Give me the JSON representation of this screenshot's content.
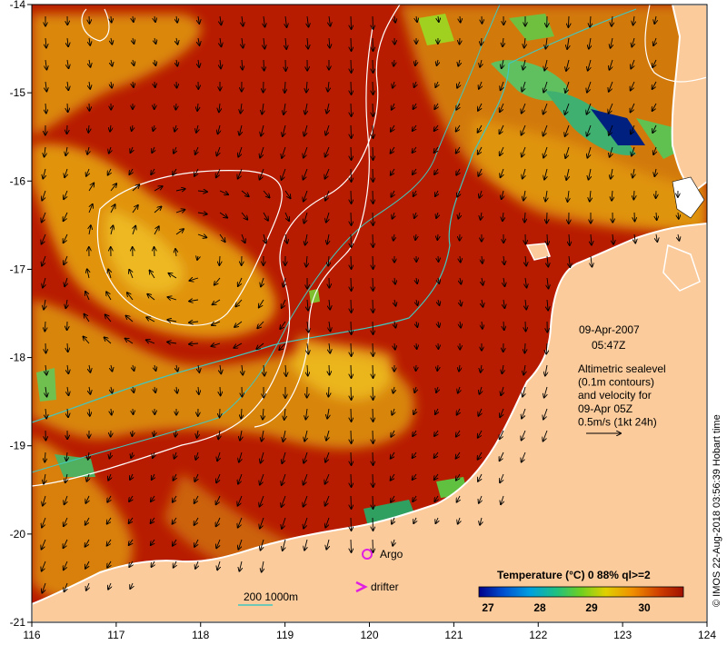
{
  "map": {
    "lon_ticks": [
      "116",
      "117",
      "118",
      "119",
      "120",
      "121",
      "122",
      "123",
      "124"
    ],
    "lat_ticks": [
      "-14",
      "-15",
      "-16",
      "-17",
      "-18",
      "-19",
      "-20",
      "-21"
    ],
    "lon_range": [
      116,
      124
    ],
    "lat_range": [
      -21,
      -14
    ]
  },
  "annotations": {
    "date": "09-Apr-2007",
    "time": "05:47Z",
    "info_lines": [
      "Altimetric sealevel",
      "(0.1m contours)",
      "and velocity for",
      "09-Apr 05Z",
      "0.5m/s (1kt 24h)"
    ]
  },
  "legend": {
    "argo_label": "Argo",
    "drifter_label": "drifter",
    "isobath_label": "200  1000m",
    "colorbar_title": "Temperature (°C) 0 88% ql>=2",
    "colorbar_ticks": [
      "27",
      "28",
      "29",
      "30"
    ]
  },
  "credit": "© IMOS 22-Aug-2018 03:56:39 Hobart time",
  "colors": {
    "land": "#fbcb9b",
    "warm_sst": "#b81c00",
    "mid_sst": "#e8a010",
    "isobath": "#40c8c0",
    "argo": "#e020e0"
  }
}
